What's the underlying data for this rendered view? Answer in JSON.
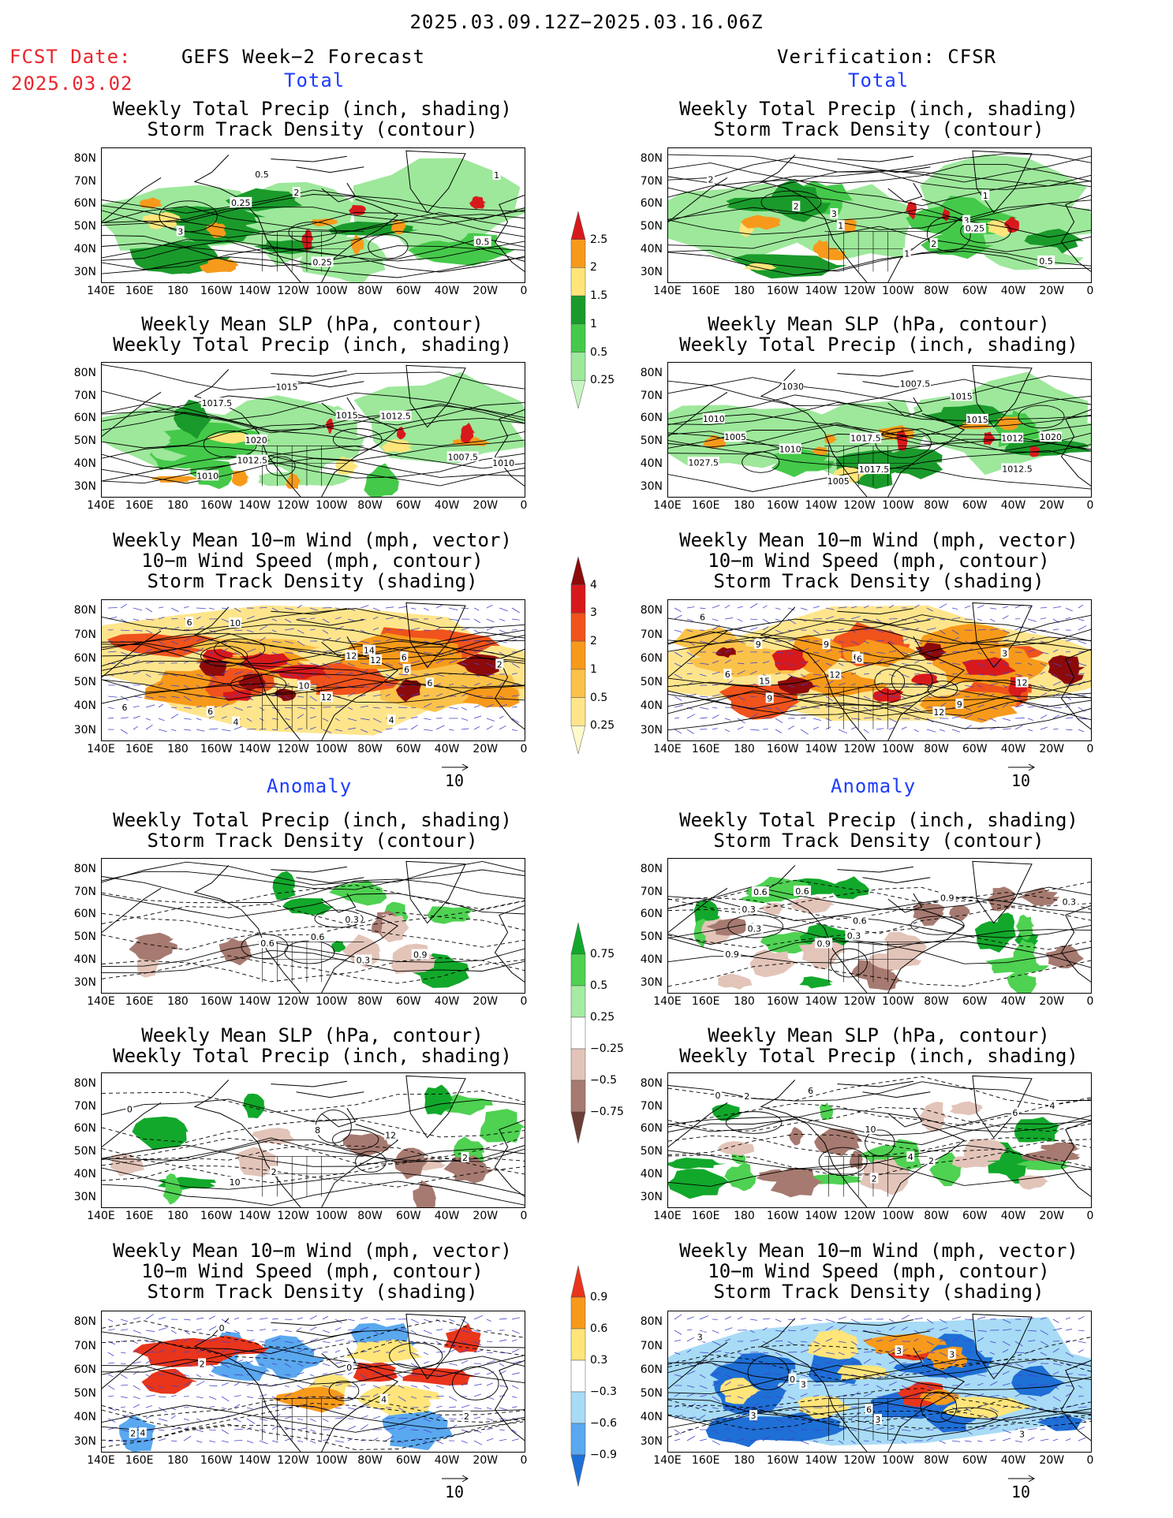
{
  "header": {
    "date_range": "2025.03.09.12Z−2025.03.16.06Z",
    "fcst_label": "FCST Date:",
    "fcst_date": "2025.03.02",
    "left_model": "GEFS Week−2 Forecast",
    "right_model": "Verification: CFSR",
    "total_label": "Total",
    "anomaly_label": "Anomaly"
  },
  "panel_titles": {
    "precip_storm": [
      "Weekly Total Precip (inch, shading)",
      "Storm Track Density (contour)"
    ],
    "slp_precip": [
      "Weekly Mean SLP (hPa, contour)",
      "Weekly Total Precip (inch, shading)"
    ],
    "wind_storm": [
      "Weekly Mean 10−m Wind (mph, vector)",
      "10−m Wind Speed (mph, contour)",
      "Storm Track Density (shading)"
    ]
  },
  "axes": {
    "lat_ticks": [
      "80N",
      "70N",
      "60N",
      "50N",
      "40N",
      "30N"
    ],
    "lon_ticks": [
      "140E",
      "160E",
      "180",
      "160W",
      "140W",
      "120W",
      "100W",
      "80W",
      "60W",
      "40W",
      "20W",
      "0"
    ]
  },
  "vector_ref": "10",
  "colorbars": {
    "precip_total": {
      "labels": [
        "2.5",
        "2",
        "1.5",
        "1",
        "0.5",
        "0.25"
      ],
      "colors": [
        "#d7191c",
        "#f79a1b",
        "#ffe57a",
        "#1a9a2b",
        "#45c94a",
        "#9de89b",
        "#c7f5c1"
      ]
    },
    "storm_total": {
      "labels": [
        "4",
        "3",
        "2",
        "1",
        "0.5",
        "0.25"
      ],
      "colors": [
        "#8c0a0a",
        "#d7191c",
        "#f0531b",
        "#f79a1b",
        "#fbc24a",
        "#fee58c",
        "#fffacc"
      ]
    },
    "precip_anom": {
      "labels": [
        "0.75",
        "0.5",
        "0.25",
        "−0.25",
        "−0.5",
        "−0.75"
      ],
      "colors": [
        "#12a82b",
        "#4fd152",
        "#a5eba2",
        "#ffffff",
        "#e3c4b9",
        "#a67a70",
        "#6a3f35"
      ]
    },
    "storm_anom": {
      "labels": [
        "0.9",
        "0.6",
        "0.3",
        "−0.3",
        "−0.6",
        "−0.9"
      ],
      "colors": [
        "#e8351b",
        "#f79a1b",
        "#ffe57a",
        "#ffffff",
        "#a8dbf5",
        "#5aa8ef",
        "#1e6fd6"
      ]
    }
  },
  "contour_labels": {
    "l_precip": [
      "1",
      "0.25",
      "0.5",
      "2",
      "3",
      "0.25",
      "0.5"
    ],
    "r_precip": [
      "0.5",
      "1",
      "2",
      "3",
      "0.25",
      "2",
      "1",
      "3",
      "1",
      "2"
    ],
    "l_slp": [
      "1007.5",
      "1017.5",
      "1012.5",
      "1010",
      "1020",
      "1015",
      "1015",
      "1010",
      "1012.5"
    ],
    "r_slp": [
      "1012",
      "1015",
      "1027.5",
      "1030",
      "1020",
      "1005",
      "1017.5",
      "1010",
      "1012.5",
      "1015",
      "1005",
      "1007.5",
      "1017.5",
      "1010"
    ],
    "l_wind": [
      "6",
      "12",
      "6",
      "6",
      "4",
      "12",
      "4",
      "10",
      "10",
      "6",
      "12",
      "14",
      "6",
      "6",
      "2"
    ],
    "r_wind": [
      "6",
      "9",
      "12",
      "6",
      "6",
      "3",
      "9",
      "12",
      "9",
      "12",
      "15",
      "9",
      "6"
    ],
    "l_precip_a": [
      "0.3",
      "0.9",
      "0.6",
      "0.3",
      "0.6"
    ],
    "r_precip_a": [
      "0.3",
      "0.6",
      "0.9",
      "0.3",
      "0.3",
      "0.6",
      "0.9",
      "0.6",
      "0.9",
      "0.3"
    ],
    "l_slp_a": [
      "10",
      "0",
      "12",
      "8",
      "2",
      "2"
    ],
    "r_slp_a": [
      "10",
      "0",
      "2",
      "6",
      "4",
      "4",
      "2",
      "6",
      "2"
    ],
    "l_wind_a": [
      "2",
      "4",
      "2",
      "0",
      "2",
      "4",
      "0"
    ],
    "r_wind_a": [
      "3",
      "3",
      "6",
      "3",
      "3",
      "3",
      "0",
      "3",
      "3"
    ]
  }
}
